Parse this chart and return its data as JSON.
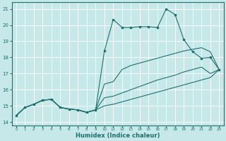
{
  "xlabel": "Humidex (Indice chaleur)",
  "xlim": [
    -0.5,
    23.5
  ],
  "ylim": [
    13.8,
    21.4
  ],
  "yticks": [
    14,
    15,
    16,
    17,
    18,
    19,
    20,
    21
  ],
  "xticks": [
    0,
    1,
    2,
    3,
    4,
    5,
    6,
    7,
    8,
    9,
    10,
    11,
    12,
    13,
    14,
    15,
    16,
    17,
    18,
    19,
    20,
    21,
    22,
    23
  ],
  "bg_color": "#c6e8e8",
  "line_color": "#1e7070",
  "grid_color": "#ffffff",
  "series": [
    {
      "x": [
        0,
        1,
        2,
        3,
        4,
        5,
        6,
        7,
        8,
        9,
        10,
        11,
        12,
        13,
        14,
        15,
        16,
        17,
        18,
        19,
        20,
        21,
        22,
        23
      ],
      "y": [
        14.4,
        14.9,
        15.1,
        15.35,
        15.4,
        14.9,
        14.8,
        14.75,
        14.6,
        14.75,
        18.4,
        20.35,
        19.85,
        19.85,
        19.9,
        19.9,
        19.85,
        21.0,
        20.65,
        19.1,
        18.35,
        17.95,
        18.0,
        17.25
      ],
      "has_markers": true
    },
    {
      "x": [
        0,
        1,
        2,
        3,
        4,
        5,
        6,
        7,
        8,
        9,
        10,
        11,
        12,
        13,
        14,
        15,
        16,
        17,
        18,
        19,
        20,
        21,
        22,
        23
      ],
      "y": [
        14.4,
        14.9,
        15.1,
        15.35,
        15.4,
        14.9,
        14.8,
        14.75,
        14.6,
        14.75,
        16.35,
        16.5,
        17.25,
        17.5,
        17.65,
        17.8,
        17.95,
        18.1,
        18.25,
        18.4,
        18.5,
        18.6,
        18.35,
        17.25
      ],
      "has_markers": false
    },
    {
      "x": [
        0,
        1,
        2,
        3,
        4,
        5,
        6,
        7,
        8,
        9,
        10,
        11,
        12,
        13,
        14,
        15,
        16,
        17,
        18,
        19,
        20,
        21,
        22,
        23
      ],
      "y": [
        14.4,
        14.9,
        15.1,
        15.35,
        15.4,
        14.9,
        14.8,
        14.75,
        14.6,
        14.75,
        15.5,
        15.6,
        15.8,
        16.0,
        16.2,
        16.4,
        16.6,
        16.75,
        16.9,
        17.1,
        17.25,
        17.4,
        17.0,
        17.25
      ],
      "has_markers": false
    },
    {
      "x": [
        0,
        1,
        2,
        3,
        4,
        5,
        6,
        7,
        8,
        9,
        10,
        11,
        12,
        13,
        14,
        15,
        16,
        17,
        18,
        19,
        20,
        21,
        22,
        23
      ],
      "y": [
        14.4,
        14.9,
        15.1,
        15.35,
        15.4,
        14.9,
        14.8,
        14.75,
        14.6,
        14.75,
        15.0,
        15.1,
        15.25,
        15.4,
        15.55,
        15.7,
        15.85,
        16.0,
        16.15,
        16.3,
        16.45,
        16.6,
        16.75,
        17.25
      ],
      "has_markers": false
    }
  ]
}
